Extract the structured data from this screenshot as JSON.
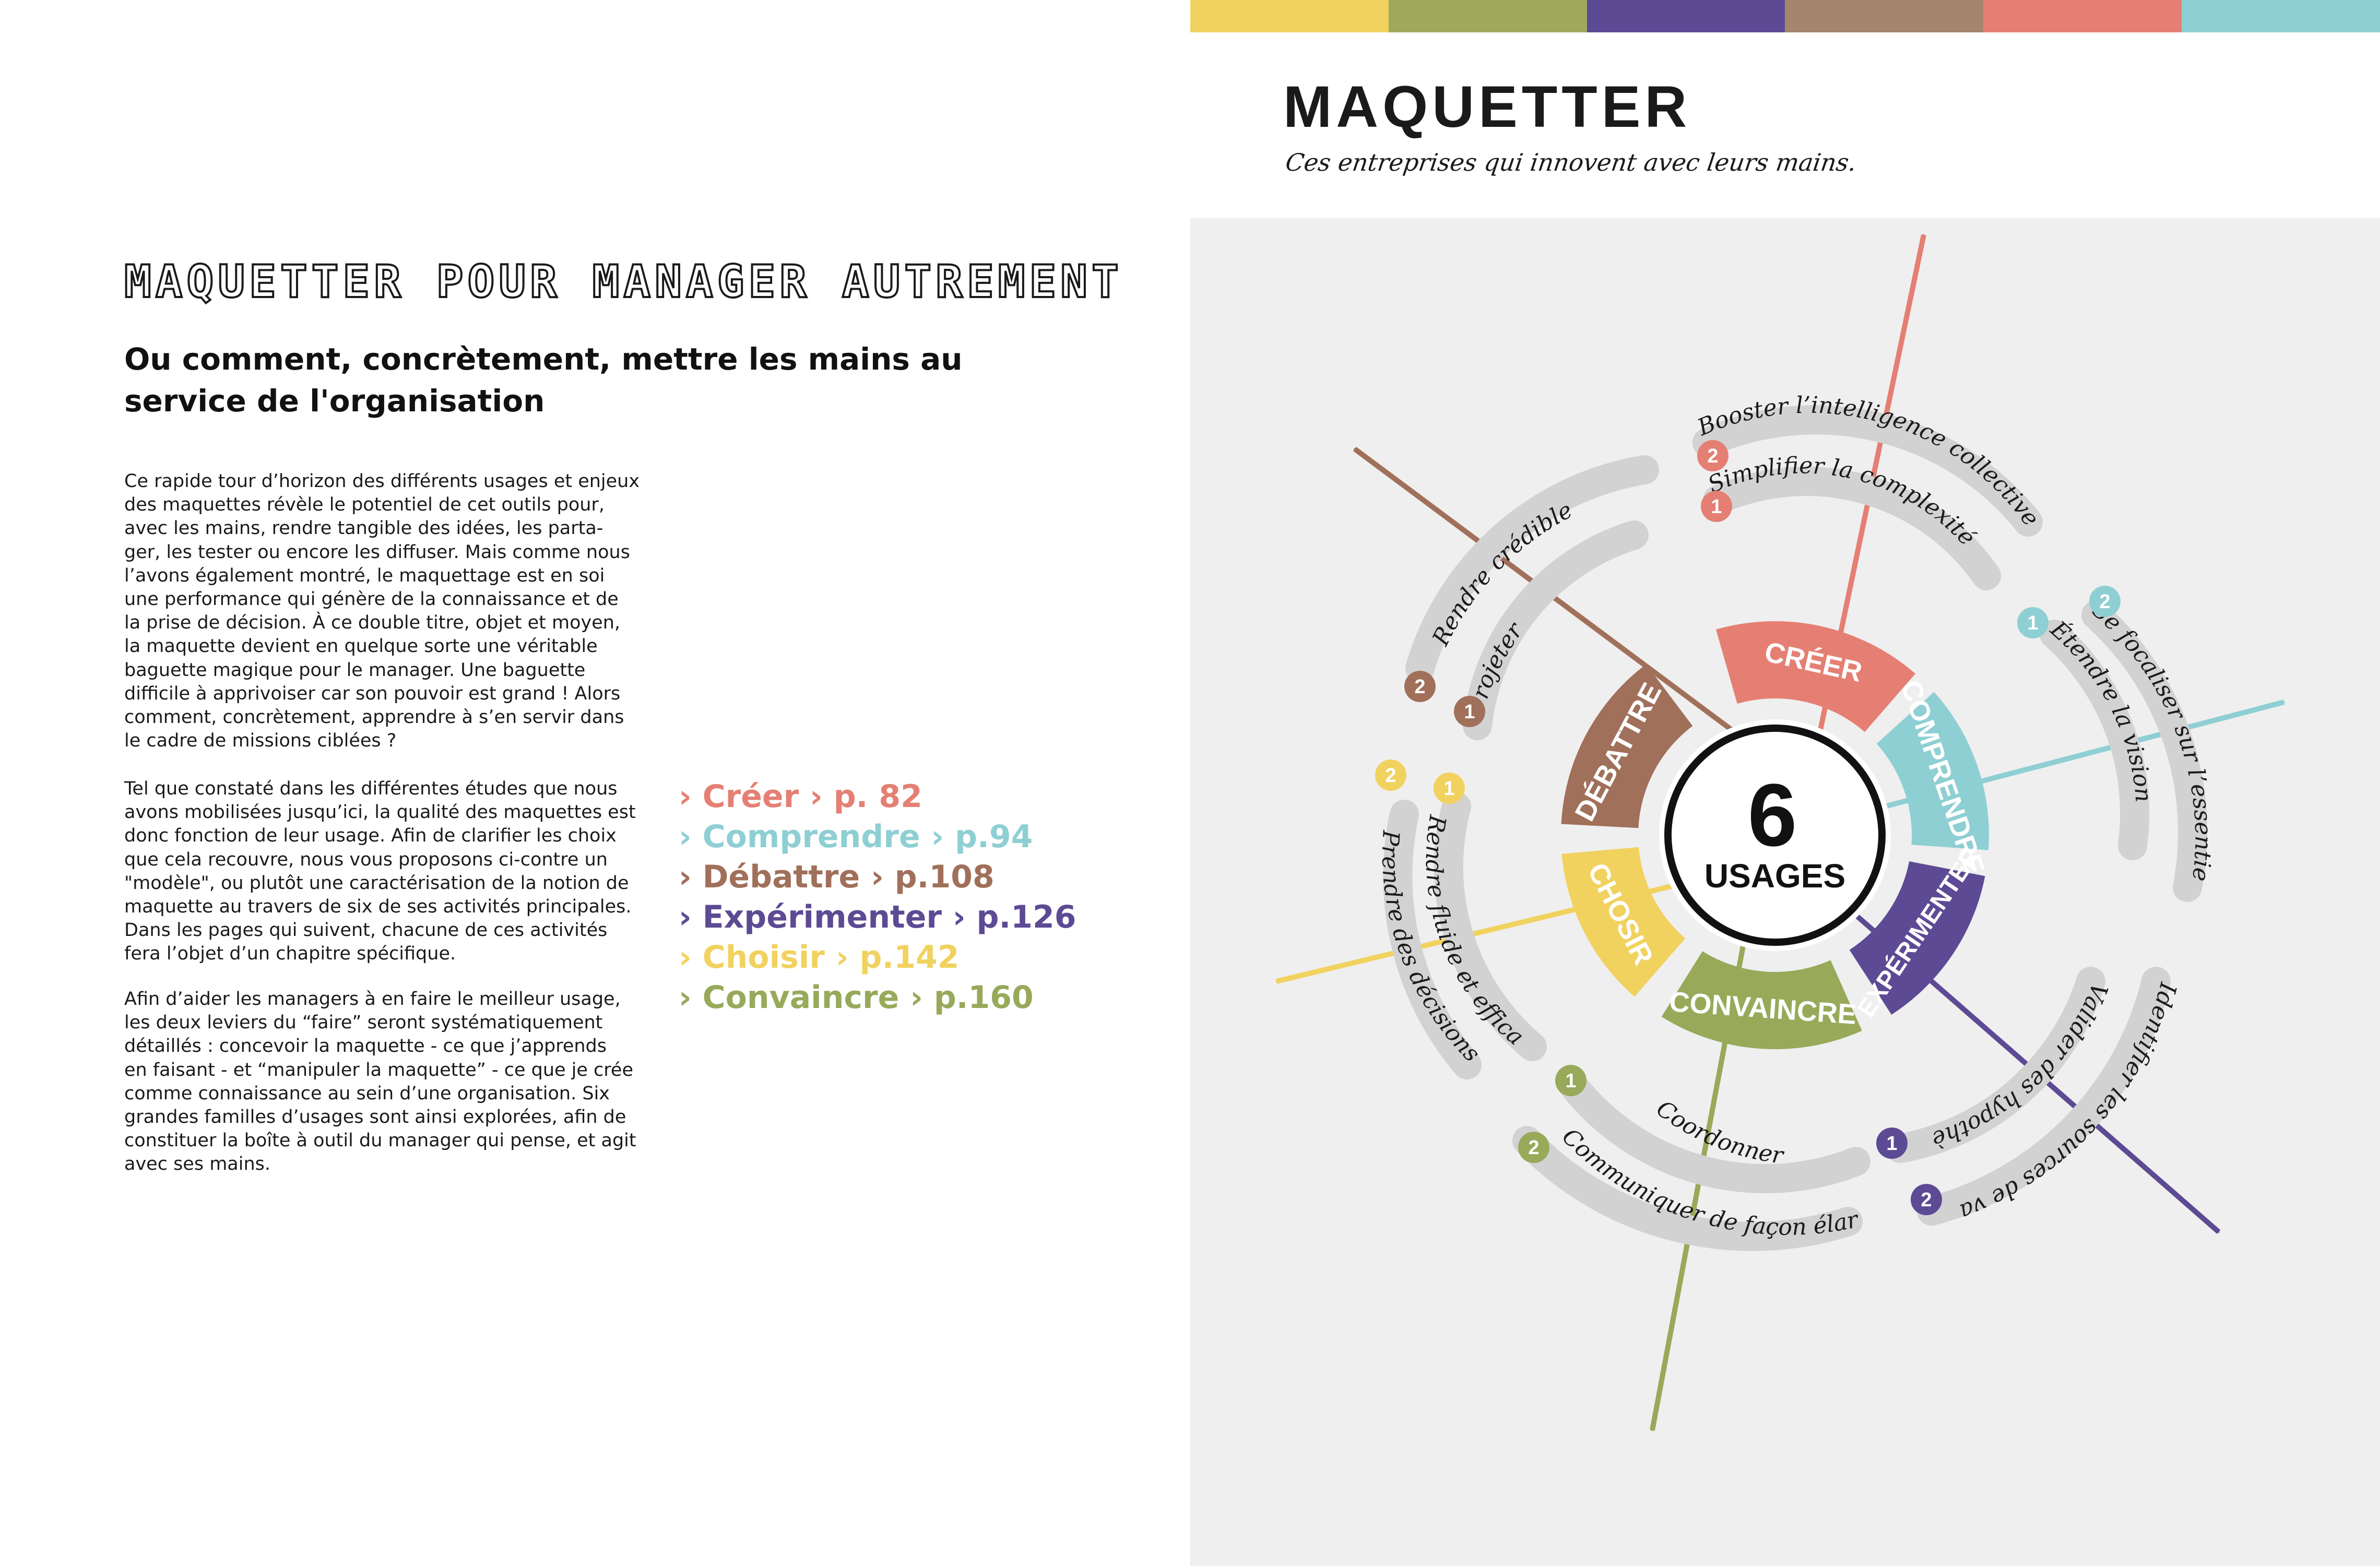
{
  "left": {
    "title": "MAQUETTER POUR MANAGER AUTREMENT",
    "subtitle": "Ou comment, concrètement, mettre les mains au service de l'organisation",
    "paragraphs": [
      [
        "Ce rapide tour d’horizon des différents usages et enjeux",
        "des maquettes révèle le potentiel de cet outils pour,",
        "avec les mains, rendre tangible des idées, les parta-",
        "ger, les tester ou encore les diffuser. Mais comme nous",
        "l’avons également montré, le maquettage est en soi",
        "une performance qui génère de la connaissance et de",
        "la prise de décision. À ce double titre, objet et moyen,",
        "la maquette devient en quelque sorte une véritable",
        "baguette magique pour le manager. Une baguette",
        "difficile à apprivoiser car son pouvoir est grand ! Alors",
        "comment, concrètement, apprendre à s’en servir dans",
        "le cadre de missions ciblées ?"
      ],
      [
        "Tel que constaté dans les différentes études que nous",
        "avons mobilisées jusqu’ici, la qualité des maquettes est",
        "donc fonction de leur usage. Afin de clarifier les choix",
        "que cela recouvre, nous vous proposons ci-contre un",
        "\"modèle\", ou plutôt une caractérisation de la notion de",
        "maquette au travers de six de ses activités principales.",
        "Dans les pages qui suivent, chacune de ces activités",
        "fera l’objet d’un chapitre spécifique."
      ],
      [
        "Afin d’aider les managers à en faire le meilleur usage,",
        "les deux leviers du “faire” seront systématiquement",
        "détaillés : concevoir la maquette - ce que j’apprends",
        "en faisant - et “manipuler la maquette” - ce que je crée",
        "comme connaissance au sein d’une organisation. Six",
        "grandes familles d’usages sont ainsi explorées, afin de",
        "constituer la boîte à outil du manager qui pense, et agit",
        "avec ses mains."
      ]
    ],
    "chapters": [
      {
        "label": "› Créer › p. 82",
        "color": "#e57f73"
      },
      {
        "label": "› Comprendre › p.94",
        "color": "#8ecfd3"
      },
      {
        "label": "› Débattre › p.108",
        "color": "#a0705a"
      },
      {
        "label": "› Expérimenter › p.126",
        "color": "#5d4a94"
      },
      {
        "label": "› Choisir › p.142",
        "color": "#f1d25f"
      },
      {
        "label": "› Convaincre › p.160",
        "color": "#98a95a"
      }
    ]
  },
  "right": {
    "title": "MAQUETTER",
    "tagline": "Ces entreprises qui innovent avec leurs mains.",
    "band_colors": [
      "#f1d25f",
      "#9ea95e",
      "#5d4a94",
      "#a5856b",
      "#e57f73",
      "#8ecfd3"
    ],
    "center": {
      "number": "6",
      "label": "USAGES"
    },
    "usages": [
      {
        "label": "CRÉER",
        "color": "#e57f73"
      },
      {
        "label": "COMPRENDRE",
        "color": "#8ecfd3"
      },
      {
        "label": "EXPÉRIMENTER",
        "color": "#5d4a94"
      },
      {
        "label": "CONVAINCRE",
        "color": "#98a95a"
      },
      {
        "label": "CHOSIR",
        "color": "#f1d25f"
      },
      {
        "label": "DÉBATTRE",
        "color": "#a0705a"
      }
    ],
    "levers": {
      "creer_1": "Simplifier la complexité",
      "creer_2": "Booster l’intelligence collective",
      "comprendre_1": "Étendre la vision",
      "comprendre_2": "Se focaliser sur l’essentiel",
      "experimenter_1": "Valider des hypothèses",
      "experimenter_2": "Identifier les sources de valeur",
      "convaincre_1": "Coordonner",
      "convaincre_2": "Communiquer de façon élargie",
      "choisir_1": "Rendre fluide et efficace",
      "choisir_2": "Prendre des décisions",
      "debattre_1": "Projeter",
      "debattre_2": "Rendre crédible"
    },
    "badge_1": "1",
    "badge_2": "2"
  }
}
